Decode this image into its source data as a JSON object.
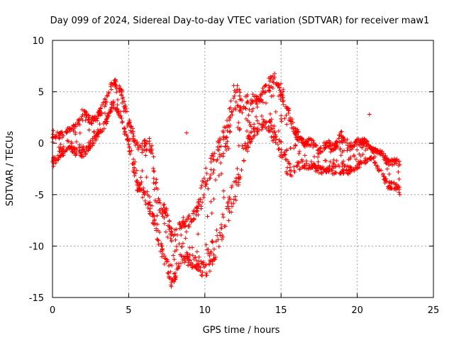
{
  "chart_data": {
    "type": "scatter",
    "title": "Day 099 of 2024, Sidereal Day-to-day VTEC variation (SDTVAR) for receiver maw1",
    "xlabel": "GPS time / hours",
    "ylabel": "SDTVAR / TECUs",
    "xlim": [
      0,
      25
    ],
    "ylim": [
      -15,
      10
    ],
    "xticks": [
      0,
      5,
      10,
      15,
      20,
      25
    ],
    "yticks": [
      -15,
      -10,
      -5,
      0,
      5,
      10
    ],
    "xtick_labels": [
      "0",
      "5",
      "10",
      "15",
      "20",
      "25"
    ],
    "ytick_labels": [
      "-15",
      "-10",
      "-5",
      "0",
      "5",
      "10"
    ],
    "grid": true,
    "marker": "+",
    "series": [
      {
        "name": "SDTVAR",
        "color": "#ff0000",
        "envelope": [
          {
            "x": 0.0,
            "lo": -2.5,
            "hi": 1.3
          },
          {
            "x": 0.5,
            "lo": -1.5,
            "hi": 1.0
          },
          {
            "x": 1.0,
            "lo": -0.8,
            "hi": 1.5
          },
          {
            "x": 1.5,
            "lo": -1.2,
            "hi": 2.0
          },
          {
            "x": 2.0,
            "lo": -1.5,
            "hi": 3.5
          },
          {
            "x": 2.5,
            "lo": -0.5,
            "hi": 2.5
          },
          {
            "x": 3.0,
            "lo": 0.5,
            "hi": 3.0
          },
          {
            "x": 3.5,
            "lo": 1.5,
            "hi": 4.5
          },
          {
            "x": 4.0,
            "lo": 3.5,
            "hi": 6.5
          },
          {
            "x": 4.5,
            "lo": 2.0,
            "hi": 5.5
          },
          {
            "x": 5.0,
            "lo": -0.5,
            "hi": 2.5
          },
          {
            "x": 5.5,
            "lo": -4.5,
            "hi": 0.5
          },
          {
            "x": 6.0,
            "lo": -5.5,
            "hi": 0.5
          },
          {
            "x": 6.5,
            "lo": -7.5,
            "hi": 0.5
          },
          {
            "x": 7.0,
            "lo": -10.5,
            "hi": -5.5
          },
          {
            "x": 7.5,
            "lo": -12.5,
            "hi": -6.0
          },
          {
            "x": 7.8,
            "lo": -14.5,
            "hi": -8.0
          },
          {
            "x": 8.0,
            "lo": -13.5,
            "hi": -8.5
          },
          {
            "x": 8.5,
            "lo": -11.5,
            "hi": -7.0
          },
          {
            "x": 9.0,
            "lo": -12.0,
            "hi": -7.0
          },
          {
            "x": 9.5,
            "lo": -12.5,
            "hi": -6.0
          },
          {
            "x": 10.0,
            "lo": -13.5,
            "hi": -2.5
          },
          {
            "x": 10.5,
            "lo": -12.0,
            "hi": -1.0
          },
          {
            "x": 11.0,
            "lo": -10.0,
            "hi": 1.0
          },
          {
            "x": 11.5,
            "lo": -8.0,
            "hi": 2.5
          },
          {
            "x": 12.0,
            "lo": -6.0,
            "hi": 6.5
          },
          {
            "x": 12.5,
            "lo": -2.0,
            "hi": 4.5
          },
          {
            "x": 13.0,
            "lo": 0.0,
            "hi": 5.0
          },
          {
            "x": 13.5,
            "lo": 1.0,
            "hi": 4.5
          },
          {
            "x": 14.0,
            "lo": 1.5,
            "hi": 6.0
          },
          {
            "x": 14.5,
            "lo": 0.0,
            "hi": 7.0
          },
          {
            "x": 15.0,
            "lo": -1.5,
            "hi": 6.0
          },
          {
            "x": 15.5,
            "lo": -3.5,
            "hi": 3.5
          },
          {
            "x": 16.0,
            "lo": -3.0,
            "hi": 1.5
          },
          {
            "x": 16.5,
            "lo": -2.5,
            "hi": 0.5
          },
          {
            "x": 17.0,
            "lo": -2.5,
            "hi": 0.5
          },
          {
            "x": 17.5,
            "lo": -3.0,
            "hi": -0.5
          },
          {
            "x": 18.0,
            "lo": -3.0,
            "hi": 0.5
          },
          {
            "x": 18.5,
            "lo": -3.0,
            "hi": 0.0
          },
          {
            "x": 19.0,
            "lo": -3.0,
            "hi": 1.3
          },
          {
            "x": 19.5,
            "lo": -3.0,
            "hi": 0.0
          },
          {
            "x": 20.0,
            "lo": -2.5,
            "hi": 0.5
          },
          {
            "x": 20.5,
            "lo": -2.0,
            "hi": 0.5
          },
          {
            "x": 21.0,
            "lo": -1.5,
            "hi": -0.5
          },
          {
            "x": 21.5,
            "lo": -3.0,
            "hi": -0.5
          },
          {
            "x": 22.0,
            "lo": -4.5,
            "hi": -1.5
          },
          {
            "x": 22.5,
            "lo": -4.5,
            "hi": -1.5
          },
          {
            "x": 22.8,
            "lo": -5.0,
            "hi": -1.5
          }
        ],
        "outliers": [
          {
            "x": 20.8,
            "y": 2.8
          },
          {
            "x": 8.8,
            "y": 1.0
          },
          {
            "x": 22.8,
            "y": -5.0
          }
        ]
      }
    ]
  }
}
